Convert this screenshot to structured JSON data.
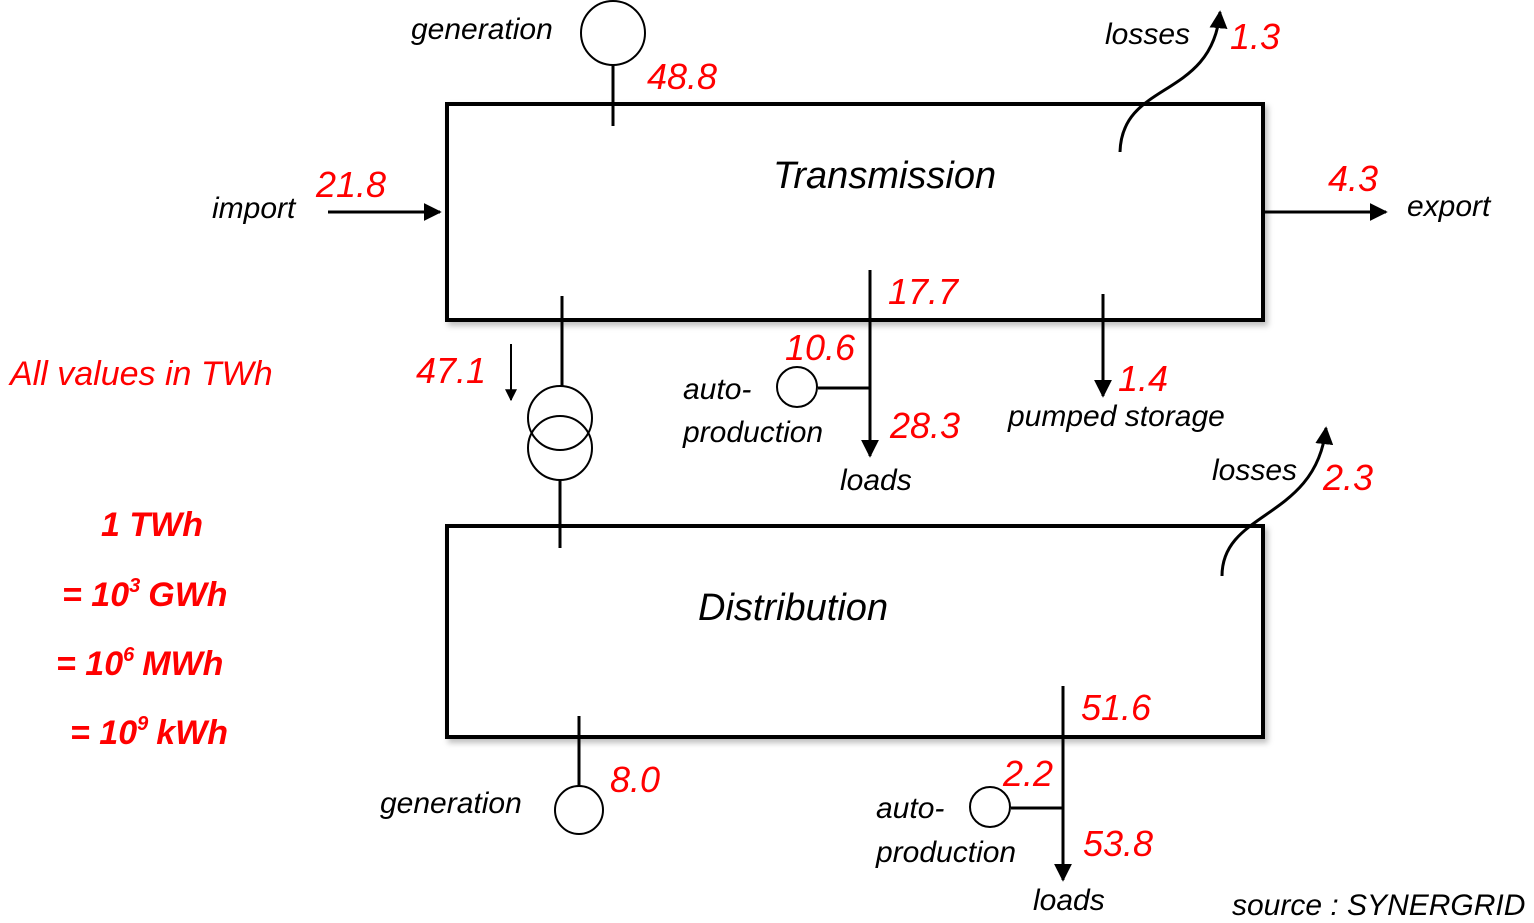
{
  "colors": {
    "value": "#ff0000",
    "line": "#000000",
    "background": "#ffffff"
  },
  "transmission": {
    "title": "Transmission",
    "generation_label": "generation",
    "generation_value": "48.8",
    "import_label": "import",
    "import_value": "21.8",
    "losses_label": "losses",
    "losses_value": "1.3",
    "export_label": "export",
    "export_value": "4.3",
    "to_distribution_value": "47.1",
    "load_branch_value": "17.7",
    "auto_label_1": "auto-",
    "auto_label_2": "production",
    "auto_value": "10.6",
    "loads_label": "loads",
    "loads_value": "28.3",
    "pumped_label": "pumped storage",
    "pumped_value": "1.4"
  },
  "distribution": {
    "title": "Distribution",
    "losses_label": "losses",
    "losses_value": "2.3",
    "generation_label": "generation",
    "generation_value": "8.0",
    "load_branch_value": "51.6",
    "auto_label_1": "auto-",
    "auto_label_2": "production",
    "auto_value": "2.2",
    "loads_label": "loads",
    "loads_value": "53.8"
  },
  "units_note": "All values in TWh",
  "conversion": {
    "line1": "1 TWh",
    "line2_prefix": "= 10",
    "line2_exp": "3",
    "line2_unit": "GWh",
    "line3_prefix": "= 10",
    "line3_exp": "6",
    "line3_unit": "MWh",
    "line4_prefix": "= 10",
    "line4_exp": "9",
    "line4_unit": "kWh"
  },
  "source": "source : SYNERGRID"
}
